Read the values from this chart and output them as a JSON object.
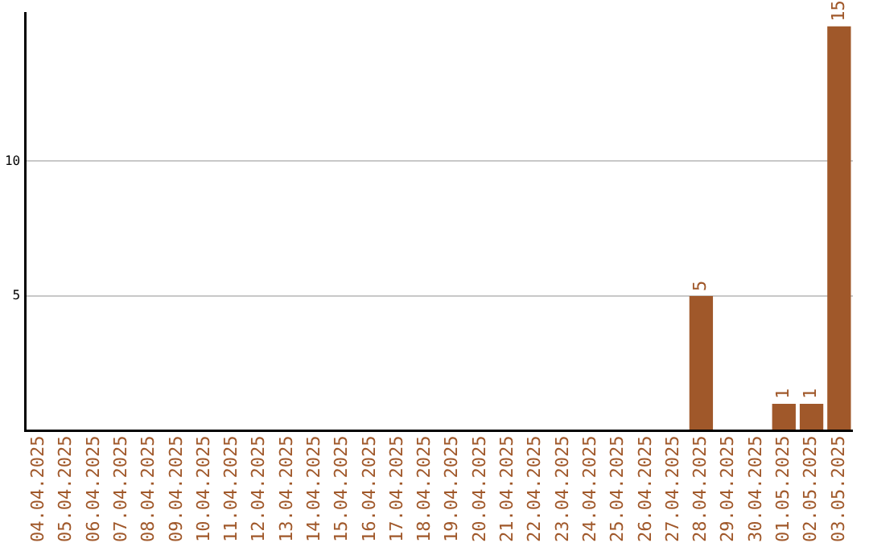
{
  "chart_data": {
    "type": "bar",
    "categories": [
      "04.04.2025",
      "05.04.2025",
      "06.04.2025",
      "07.04.2025",
      "08.04.2025",
      "09.04.2025",
      "10.04.2025",
      "11.04.2025",
      "12.04.2025",
      "13.04.2025",
      "14.04.2025",
      "15.04.2025",
      "16.04.2025",
      "17.04.2025",
      "18.04.2025",
      "19.04.2025",
      "20.04.2025",
      "21.04.2025",
      "22.04.2025",
      "23.04.2025",
      "24.04.2025",
      "25.04.2025",
      "26.04.2025",
      "27.04.2025",
      "28.04.2025",
      "29.04.2025",
      "30.04.2025",
      "01.05.2025",
      "02.05.2025",
      "03.05.2025"
    ],
    "values": [
      0,
      0,
      0,
      0,
      0,
      0,
      0,
      0,
      0,
      0,
      0,
      0,
      0,
      0,
      0,
      0,
      0,
      0,
      0,
      0,
      0,
      0,
      0,
      0,
      5,
      0,
      0,
      1,
      1,
      15
    ],
    "value_labels": [
      null,
      null,
      null,
      null,
      null,
      null,
      null,
      null,
      null,
      null,
      null,
      null,
      null,
      null,
      null,
      null,
      null,
      null,
      null,
      null,
      null,
      null,
      null,
      null,
      "5",
      null,
      null,
      "1",
      "1",
      "15"
    ],
    "color": "#a0582a",
    "ylim": [
      0,
      15.5
    ],
    "yticks": [
      5,
      10
    ],
    "grid": "y",
    "legend": false
  }
}
